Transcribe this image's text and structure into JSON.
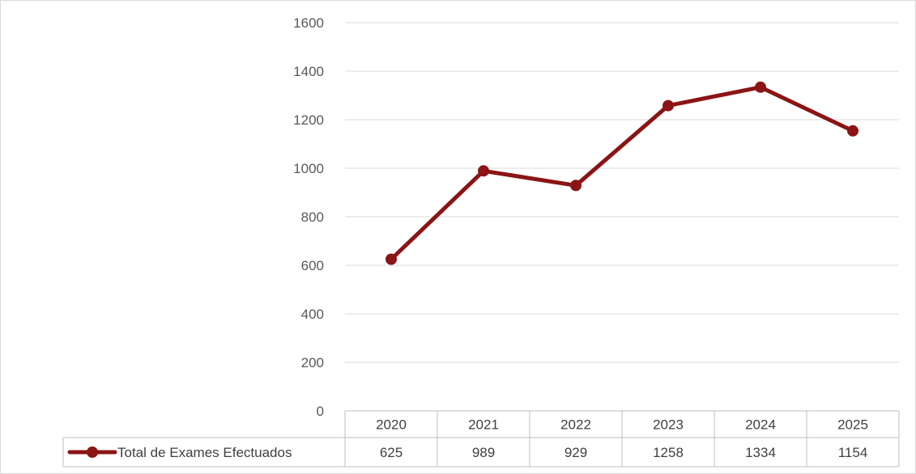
{
  "chart_data": {
    "type": "line",
    "title": "",
    "xlabel": "",
    "ylabel": "",
    "categories": [
      "2020",
      "2021",
      "2022",
      "2023",
      "2024",
      "2025"
    ],
    "series": [
      {
        "name": "Total de Exames Efectuados",
        "values": [
          625,
          989,
          929,
          1258,
          1334,
          1154
        ],
        "color": "#8b1414"
      }
    ],
    "ylim": [
      0,
      1600
    ],
    "yticks": [
      0,
      200,
      400,
      600,
      800,
      1000,
      1200,
      1400,
      1600
    ],
    "grid": true,
    "legend": "data-table-left",
    "data_table": true
  }
}
